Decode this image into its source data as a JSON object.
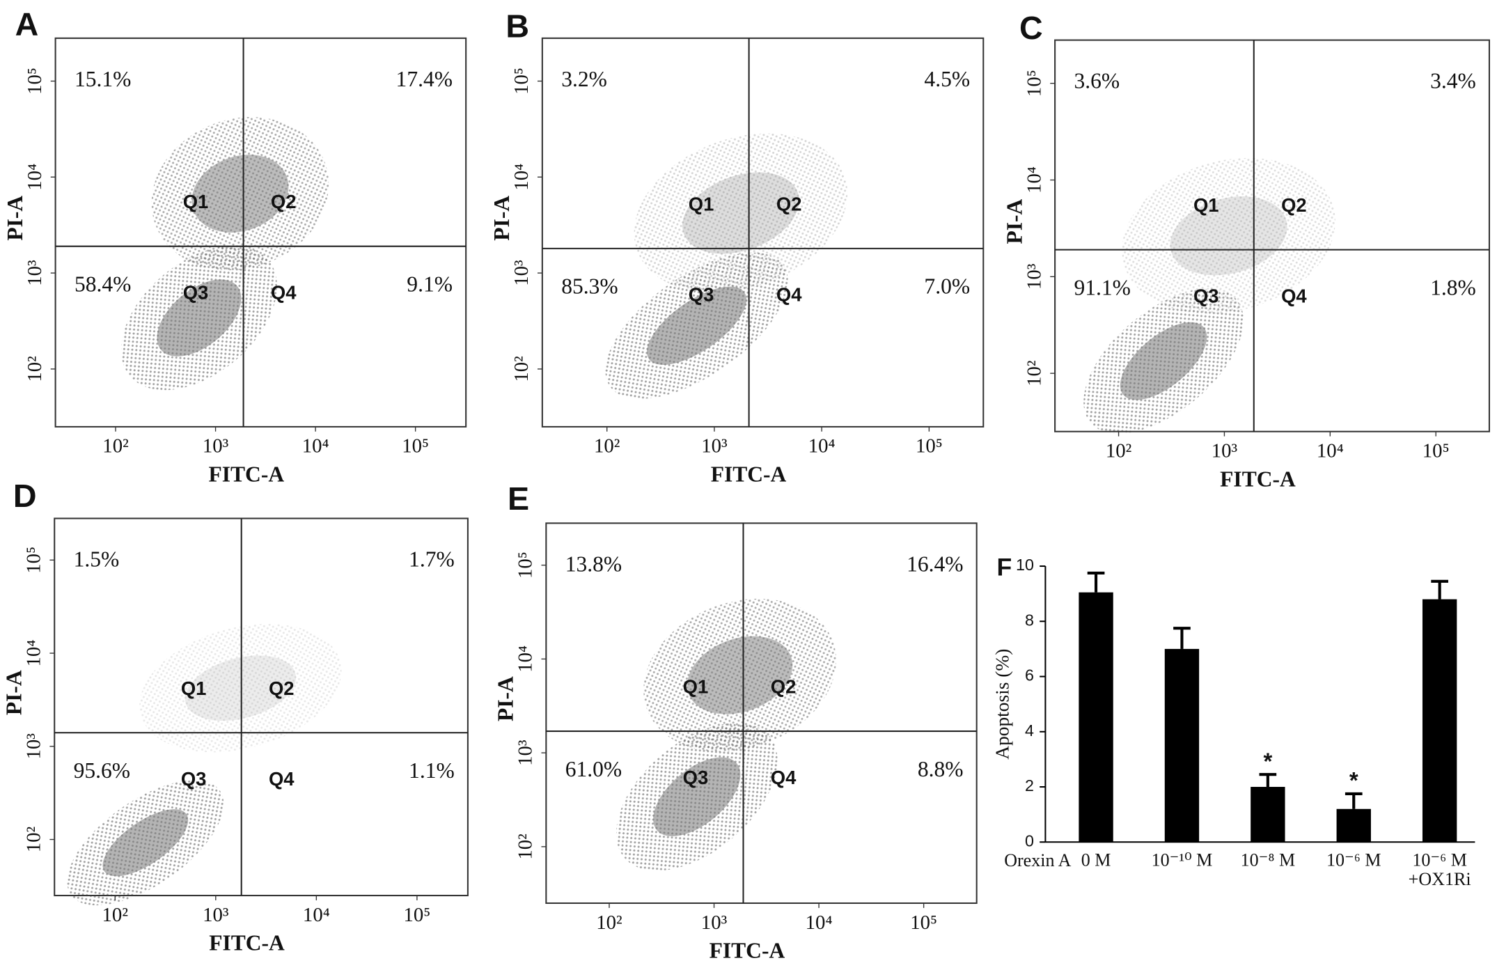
{
  "chart_data": [
    {
      "type": "quadrant",
      "label": "A",
      "xlabel": "FITC-A",
      "ylabel": "PI-A",
      "log_x": true,
      "log_y": true,
      "xlim": [
        25,
        320000
      ],
      "ylim": [
        25,
        280000
      ],
      "xticks": [
        {
          "value": 100,
          "label": "10²"
        },
        {
          "value": 1000,
          "label": "10³"
        },
        {
          "value": 10000,
          "label": "10⁴"
        },
        {
          "value": 100000,
          "label": "10⁵"
        }
      ],
      "yticks": [
        {
          "value": 100,
          "label": "10²"
        },
        {
          "value": 1000,
          "label": "10³"
        },
        {
          "value": 10000,
          "label": "10⁴"
        },
        {
          "value": 100000,
          "label": "10⁵"
        }
      ],
      "gate": [
        1900,
        1900
      ],
      "categories": [
        "Q1",
        "Q2",
        "Q3",
        "Q4"
      ],
      "values": [
        15.1,
        17.4,
        58.4,
        9.1
      ],
      "value_labels": [
        "15.1%",
        "17.4%",
        "58.4%",
        "9.1%"
      ]
    },
    {
      "type": "quadrant",
      "label": "B",
      "xlabel": "FITC-A",
      "ylabel": "PI-A",
      "log_x": true,
      "log_y": true,
      "xlim": [
        25,
        320000
      ],
      "ylim": [
        25,
        280000
      ],
      "xticks": [
        {
          "value": 100,
          "label": "10²"
        },
        {
          "value": 1000,
          "label": "10³"
        },
        {
          "value": 10000,
          "label": "10⁴"
        },
        {
          "value": 100000,
          "label": "10⁵"
        }
      ],
      "yticks": [
        {
          "value": 100,
          "label": "10²"
        },
        {
          "value": 1000,
          "label": "10³"
        },
        {
          "value": 10000,
          "label": "10⁴"
        },
        {
          "value": 100000,
          "label": "10⁵"
        }
      ],
      "gate": [
        2100,
        1800
      ],
      "categories": [
        "Q1",
        "Q2",
        "Q3",
        "Q4"
      ],
      "values": [
        3.2,
        4.5,
        85.3,
        7.0
      ],
      "value_labels": [
        "3.2%",
        "4.5%",
        "85.3%",
        "7.0%"
      ]
    },
    {
      "type": "quadrant",
      "label": "C",
      "xlabel": "FITC-A",
      "ylabel": "PI-A",
      "log_x": true,
      "log_y": true,
      "xlim": [
        25,
        320000
      ],
      "ylim": [
        25,
        280000
      ],
      "xticks": [
        {
          "value": 100,
          "label": "10²"
        },
        {
          "value": 1000,
          "label": "10³"
        },
        {
          "value": 10000,
          "label": "10⁴"
        },
        {
          "value": 100000,
          "label": "10⁵"
        }
      ],
      "yticks": [
        {
          "value": 100,
          "label": "10²"
        },
        {
          "value": 1000,
          "label": "10³"
        },
        {
          "value": 10000,
          "label": "10⁴"
        },
        {
          "value": 100000,
          "label": "10⁵"
        }
      ],
      "gate": [
        1900,
        1900
      ],
      "categories": [
        "Q1",
        "Q2",
        "Q3",
        "Q4"
      ],
      "values": [
        3.6,
        3.4,
        91.1,
        1.8
      ],
      "value_labels": [
        "3.6%",
        "3.4%",
        "91.1%",
        "1.8%"
      ]
    },
    {
      "type": "quadrant",
      "label": "D",
      "xlabel": "FITC-A",
      "ylabel": "PI-A",
      "log_x": true,
      "log_y": true,
      "xlim": [
        25,
        320000
      ],
      "ylim": [
        25,
        280000
      ],
      "xticks": [
        {
          "value": 100,
          "label": "10²"
        },
        {
          "value": 1000,
          "label": "10³"
        },
        {
          "value": 10000,
          "label": "10⁴"
        },
        {
          "value": 100000,
          "label": "10⁵"
        }
      ],
      "yticks": [
        {
          "value": 100,
          "label": "10²"
        },
        {
          "value": 1000,
          "label": "10³"
        },
        {
          "value": 10000,
          "label": "10⁴"
        },
        {
          "value": 100000,
          "label": "10⁵"
        }
      ],
      "gate": [
        1800,
        1400
      ],
      "categories": [
        "Q1",
        "Q2",
        "Q3",
        "Q4"
      ],
      "values": [
        1.5,
        1.7,
        95.6,
        1.1
      ],
      "value_labels": [
        "1.5%",
        "1.7%",
        "95.6%",
        "1.1%"
      ]
    },
    {
      "type": "quadrant",
      "label": "E",
      "xlabel": "FITC-A",
      "ylabel": "PI-A",
      "log_x": true,
      "log_y": true,
      "xlim": [
        25,
        320000
      ],
      "ylim": [
        25,
        280000
      ],
      "xticks": [
        {
          "value": 100,
          "label": "10²"
        },
        {
          "value": 1000,
          "label": "10³"
        },
        {
          "value": 10000,
          "label": "10⁴"
        },
        {
          "value": 100000,
          "label": "10⁵"
        }
      ],
      "yticks": [
        {
          "value": 100,
          "label": "10²"
        },
        {
          "value": 1000,
          "label": "10³"
        },
        {
          "value": 10000,
          "label": "10⁴"
        },
        {
          "value": 100000,
          "label": "10⁵"
        }
      ],
      "gate": [
        1900,
        1700
      ],
      "categories": [
        "Q1",
        "Q2",
        "Q3",
        "Q4"
      ],
      "values": [
        13.8,
        16.4,
        61.0,
        8.8
      ],
      "value_labels": [
        "13.8%",
        "16.4%",
        "61.0%",
        "8.8%"
      ]
    },
    {
      "type": "bar",
      "label": "F",
      "ylabel": "Apoptosis (%)",
      "xlabel": "Orexin A",
      "color": "#000000",
      "categories": [
        "0 M",
        "10⁻¹⁰ M",
        "10⁻⁸ M",
        "10⁻⁶ M",
        "10⁻⁶ M +OX1Ri"
      ],
      "values": [
        9.05,
        7.0,
        2.0,
        1.2,
        8.8
      ],
      "errors": [
        0.7,
        0.75,
        0.45,
        0.55,
        0.65
      ],
      "annotations": [
        null,
        null,
        "*",
        "*",
        null
      ],
      "ylim": [
        0,
        10
      ],
      "yticks": [
        0,
        2,
        4,
        6,
        8,
        10
      ]
    }
  ]
}
